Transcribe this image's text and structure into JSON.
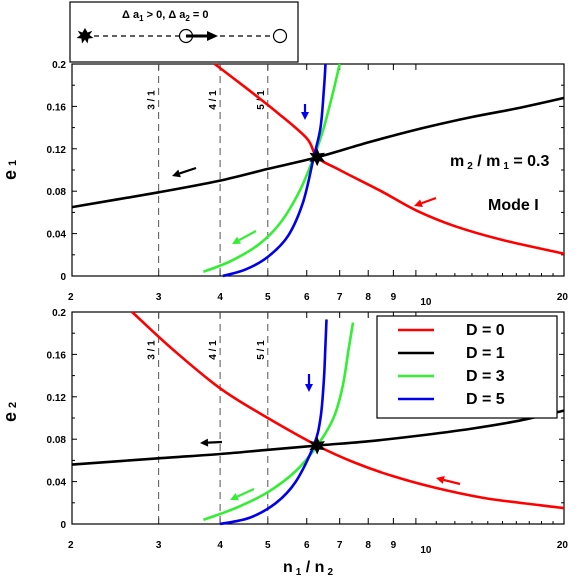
{
  "chart_data": [
    {
      "type": "line",
      "panel": "top",
      "ylabel_main": "e",
      "ylabel_sub": "1",
      "x_axis": "log",
      "xlim": [
        2,
        20
      ],
      "ylim": [
        0,
        0.2
      ],
      "y_ticks": [
        "0",
        "0.04",
        "0.08",
        "0.12",
        "0.16",
        "0.2"
      ],
      "x_ticks": [
        "2",
        "3",
        "4",
        "5",
        "6",
        "7",
        "8",
        "9",
        "10",
        "20"
      ],
      "resonances": [
        {
          "label": "3 / 1",
          "x": 3
        },
        {
          "label": "4 / 1",
          "x": 4
        },
        {
          "label": "5 / 1",
          "x": 5
        }
      ],
      "annotations": [
        {
          "main": "m",
          "sub1": "2",
          "mid": " / m",
          "sub2": "1",
          "tail": " = 0.3"
        },
        {
          "text": "Mode I"
        }
      ],
      "series": [
        {
          "name": "D = 0",
          "color": "#ff0000",
          "x": [
            3.9,
            4.5,
            5.2,
            6.0,
            6.3,
            7.0,
            8.5,
            10.0,
            12.0,
            15.0,
            20.0
          ],
          "y": [
            0.2,
            0.178,
            0.155,
            0.13,
            0.112,
            0.1,
            0.08,
            0.062,
            0.047,
            0.034,
            0.021
          ]
        },
        {
          "name": "D = 1",
          "color": "#000000",
          "x": [
            2.0,
            3.0,
            4.0,
            5.0,
            6.3,
            8.0,
            10.0,
            13.0,
            16.0,
            20.0
          ],
          "y": [
            0.065,
            0.079,
            0.09,
            0.101,
            0.112,
            0.126,
            0.138,
            0.15,
            0.158,
            0.168
          ]
        },
        {
          "name": "D = 3",
          "color": "#33ee33",
          "x": [
            3.7,
            4.2,
            4.8,
            5.3,
            5.8,
            6.2,
            6.5,
            6.8,
            7.0
          ],
          "y": [
            0.004,
            0.014,
            0.03,
            0.05,
            0.08,
            0.112,
            0.14,
            0.175,
            0.2
          ]
        },
        {
          "name": "D = 5",
          "color": "#0000ee",
          "x": [
            4.05,
            4.5,
            5.0,
            5.5,
            5.9,
            6.2,
            6.4,
            6.5,
            6.55
          ],
          "y": [
            0.0,
            0.006,
            0.018,
            0.038,
            0.07,
            0.112,
            0.14,
            0.175,
            0.2
          ]
        }
      ],
      "best_fit_point": {
        "x": 6.3,
        "y": 0.112
      }
    },
    {
      "type": "line",
      "panel": "bottom",
      "ylabel_main": "e",
      "ylabel_sub": "2",
      "xlabel_main": "n",
      "xlabel_sub1": "1",
      "xlabel_mid": " / n",
      "xlabel_sub2": "2",
      "x_axis": "log",
      "xlim": [
        2,
        20
      ],
      "ylim": [
        0,
        0.2
      ],
      "y_ticks": [
        "0",
        "0.04",
        "0.08",
        "0.12",
        "0.16",
        "0.2"
      ],
      "x_ticks": [
        "2",
        "3",
        "4",
        "5",
        "6",
        "7",
        "8",
        "9",
        "10",
        "20"
      ],
      "resonances": [
        {
          "label": "3 / 1",
          "x": 3
        },
        {
          "label": "4 / 1",
          "x": 4
        },
        {
          "label": "5 / 1",
          "x": 5
        }
      ],
      "legend": [
        {
          "label": "D = 0",
          "color": "#ff0000"
        },
        {
          "label": "D = 1",
          "color": "#000000"
        },
        {
          "label": "D = 3",
          "color": "#33ee33"
        },
        {
          "label": "D = 5",
          "color": "#0000ee"
        }
      ],
      "legend_placement": "top-right",
      "series": [
        {
          "name": "D = 0",
          "color": "#ff0000",
          "x": [
            2.65,
            3.2,
            4.0,
            5.0,
            6.3,
            7.5,
            9.0,
            11.0,
            14.0,
            20.0
          ],
          "y": [
            0.2,
            0.165,
            0.128,
            0.1,
            0.074,
            0.058,
            0.045,
            0.034,
            0.024,
            0.015
          ]
        },
        {
          "name": "D = 1",
          "color": "#000000",
          "x": [
            2.0,
            3.0,
            4.0,
            5.0,
            6.3,
            8.0,
            10.0,
            13.0,
            16.0,
            20.0
          ],
          "y": [
            0.056,
            0.062,
            0.066,
            0.07,
            0.074,
            0.078,
            0.083,
            0.09,
            0.097,
            0.107
          ]
        },
        {
          "name": "D = 3",
          "color": "#33ee33",
          "x": [
            3.7,
            4.3,
            5.0,
            5.7,
            6.3,
            6.8,
            7.1,
            7.3,
            7.45
          ],
          "y": [
            0.004,
            0.015,
            0.03,
            0.05,
            0.074,
            0.1,
            0.13,
            0.165,
            0.19
          ]
        },
        {
          "name": "D = 5",
          "color": "#0000ee",
          "x": [
            4.0,
            4.6,
            5.2,
            5.7,
            6.2,
            6.4,
            6.5,
            6.55,
            6.58
          ],
          "y": [
            0.0,
            0.006,
            0.02,
            0.04,
            0.074,
            0.1,
            0.135,
            0.17,
            0.193
          ]
        }
      ],
      "best_fit_point": {
        "x": 6.3,
        "y": 0.074
      }
    }
  ],
  "inset": {
    "delta_a1": "Δ a",
    "sub1": "1",
    "gt": " > 0, ",
    "delta_a2": "Δ a",
    "sub2": "2",
    "eq": " = 0"
  },
  "colors": {
    "D0": "#ff0000",
    "D1": "#000000",
    "D3": "#33ee33",
    "D5": "#0000ee"
  }
}
